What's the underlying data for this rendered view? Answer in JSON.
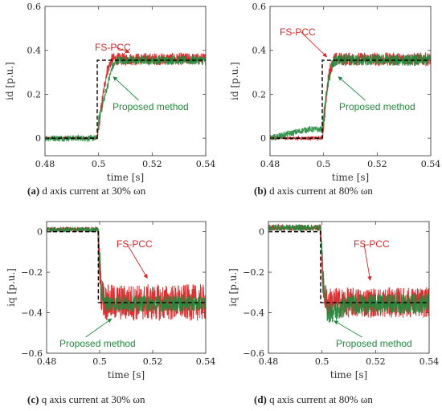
{
  "colors": {
    "fs_pcc": "#d62728",
    "proposed": "#1f8a3c",
    "reference": "#000000",
    "frame": "#444444"
  },
  "chart_data": [
    {
      "type": "line",
      "panel": "(a)",
      "caption_tag": "(a)",
      "caption_text": "d axis current at 30% ωn",
      "xlabel": "time [s]",
      "ylabel": "id [p.u.]",
      "xlim": [
        0.48,
        0.54
      ],
      "ylim": [
        -0.08,
        0.6
      ],
      "xticks": [
        0.48,
        0.5,
        0.52,
        0.54
      ],
      "xtick_labels": [
        "0.48",
        "0.5",
        "0.52",
        "0.54"
      ],
      "yticks": [
        0,
        0.2,
        0.4,
        0.6
      ],
      "ytick_labels": [
        "0",
        "0.2",
        "0.4",
        "0.6"
      ],
      "reference": {
        "x": [
          0.48,
          0.4995,
          0.4995,
          0.54
        ],
        "y": [
          0,
          0,
          0.355,
          0.355
        ]
      },
      "series": [
        {
          "name": "FS-PCC",
          "color": "#d62728",
          "x": [
            0.48,
            0.4995,
            0.501,
            0.503,
            0.505,
            0.54
          ],
          "y": [
            0,
            0,
            0.14,
            0.3,
            0.36,
            0.36
          ],
          "noise_pre": 0.006,
          "noise_post": 0.028
        },
        {
          "name": "Proposed method",
          "color": "#1f8a3c",
          "x": [
            0.48,
            0.4995,
            0.5,
            0.5025,
            0.505,
            0.507,
            0.54
          ],
          "y": [
            0,
            0,
            0.08,
            0.2,
            0.32,
            0.355,
            0.355
          ],
          "noise_pre": 0.014,
          "noise_post": 0.02
        }
      ],
      "annotations": [
        {
          "text": "FS-PCC",
          "color": "#d62728"
        },
        {
          "text": "Proposed method",
          "color": "#1f8a3c"
        }
      ]
    },
    {
      "type": "line",
      "panel": "(b)",
      "caption_tag": "(b)",
      "caption_text": "d axis current at 80% ωn",
      "xlabel": "time [s]",
      "ylabel": "id [p.u.]",
      "xlim": [
        0.48,
        0.54
      ],
      "ylim": [
        -0.08,
        0.6
      ],
      "xticks": [
        0.48,
        0.5,
        0.52,
        0.54
      ],
      "xtick_labels": [
        "0.48",
        "0.5",
        "0.52",
        "0.54"
      ],
      "yticks": [
        0,
        0.2,
        0.4,
        0.6
      ],
      "ytick_labels": [
        "0",
        "0.2",
        "0.4",
        "0.6"
      ],
      "reference": {
        "x": [
          0.48,
          0.4995,
          0.4995,
          0.54
        ],
        "y": [
          0,
          0,
          0.355,
          0.355
        ]
      },
      "series": [
        {
          "name": "FS-PCC",
          "color": "#d62728",
          "x": [
            0.48,
            0.4995,
            0.5008,
            0.502,
            0.504,
            0.54
          ],
          "y": [
            0,
            0,
            0.16,
            0.3,
            0.36,
            0.36
          ],
          "noise_pre": 0.008,
          "noise_post": 0.03
        },
        {
          "name": "Proposed method",
          "color": "#1f8a3c",
          "x": [
            0.48,
            0.494,
            0.498,
            0.4995,
            0.501,
            0.503,
            0.505,
            0.54
          ],
          "y": [
            0,
            0.04,
            0.04,
            0.04,
            0.2,
            0.33,
            0.355,
            0.355
          ],
          "noise_pre": 0.014,
          "noise_post": 0.026
        }
      ],
      "annotations": [
        {
          "text": "FS-PCC",
          "color": "#d62728"
        },
        {
          "text": "Proposed method",
          "color": "#1f8a3c"
        }
      ]
    },
    {
      "type": "line",
      "panel": "(c)",
      "caption_tag": "(c)",
      "caption_text": "q axis current at 30% ωn",
      "xlabel": "time [s]",
      "ylabel": "iq [p.u.]",
      "xlim": [
        0.48,
        0.54
      ],
      "ylim": [
        -0.6,
        0.05
      ],
      "xticks": [
        0.48,
        0.5,
        0.52,
        0.54
      ],
      "xtick_labels": [
        "0.48",
        "0.5",
        "0.52",
        "0.54"
      ],
      "yticks": [
        0,
        -0.2,
        -0.4,
        -0.6
      ],
      "ytick_labels": [
        "0",
        "−0.2",
        "−0.4",
        "−0.6"
      ],
      "reference": {
        "x": [
          0.48,
          0.4995,
          0.4995,
          0.54
        ],
        "y": [
          0,
          0,
          -0.35,
          -0.35
        ]
      },
      "series": [
        {
          "name": "FS-PCC",
          "color": "#d62728",
          "x": [
            0.48,
            0.4992,
            0.5006,
            0.502,
            0.54
          ],
          "y": [
            0.012,
            0.012,
            -0.3,
            -0.35,
            -0.35
          ],
          "noise_pre": 0.012,
          "noise_post": 0.09
        },
        {
          "name": "Proposed method",
          "color": "#1f8a3c",
          "x": [
            0.48,
            0.4995,
            0.5008,
            0.502,
            0.54
          ],
          "y": [
            0.01,
            0.01,
            -0.3,
            -0.355,
            -0.355
          ],
          "noise_pre": 0.012,
          "noise_post": 0.04
        }
      ],
      "annotations": [
        {
          "text": "FS-PCC",
          "color": "#d62728"
        },
        {
          "text": "Proposed method",
          "color": "#1f8a3c"
        }
      ]
    },
    {
      "type": "line",
      "panel": "(d)",
      "caption_tag": "(d)",
      "caption_text": "q axis current at 80% ωn",
      "xlabel": "time [s]",
      "ylabel": "iq [p.u.]",
      "xlim": [
        0.48,
        0.54
      ],
      "ylim": [
        -0.6,
        0.05
      ],
      "xticks": [
        0.48,
        0.5,
        0.52,
        0.54
      ],
      "xtick_labels": [
        "0.48",
        "0.5",
        "0.52",
        "0.54"
      ],
      "yticks": [
        0,
        -0.2,
        -0.4,
        -0.6
      ],
      "ytick_labels": [
        "0",
        "−0.2",
        "−0.4",
        "−0.6"
      ],
      "reference": {
        "x": [
          0.48,
          0.4995,
          0.4995,
          0.54
        ],
        "y": [
          0,
          0,
          -0.35,
          -0.35
        ]
      },
      "series": [
        {
          "name": "FS-PCC",
          "color": "#d62728",
          "x": [
            0.48,
            0.4992,
            0.5006,
            0.502,
            0.54
          ],
          "y": [
            0.02,
            0.02,
            -0.3,
            -0.35,
            -0.35
          ],
          "noise_pre": 0.016,
          "noise_post": 0.075
        },
        {
          "name": "Proposed method",
          "color": "#1f8a3c",
          "x": [
            0.48,
            0.4995,
            0.5008,
            0.502,
            0.505,
            0.51,
            0.54
          ],
          "y": [
            0.02,
            0.02,
            -0.3,
            -0.4,
            -0.4,
            -0.36,
            -0.355
          ],
          "noise_pre": 0.016,
          "noise_post": 0.05
        }
      ],
      "annotations": [
        {
          "text": "FS-PCC",
          "color": "#d62728"
        },
        {
          "text": "Proposed method",
          "color": "#1f8a3c"
        }
      ]
    }
  ]
}
